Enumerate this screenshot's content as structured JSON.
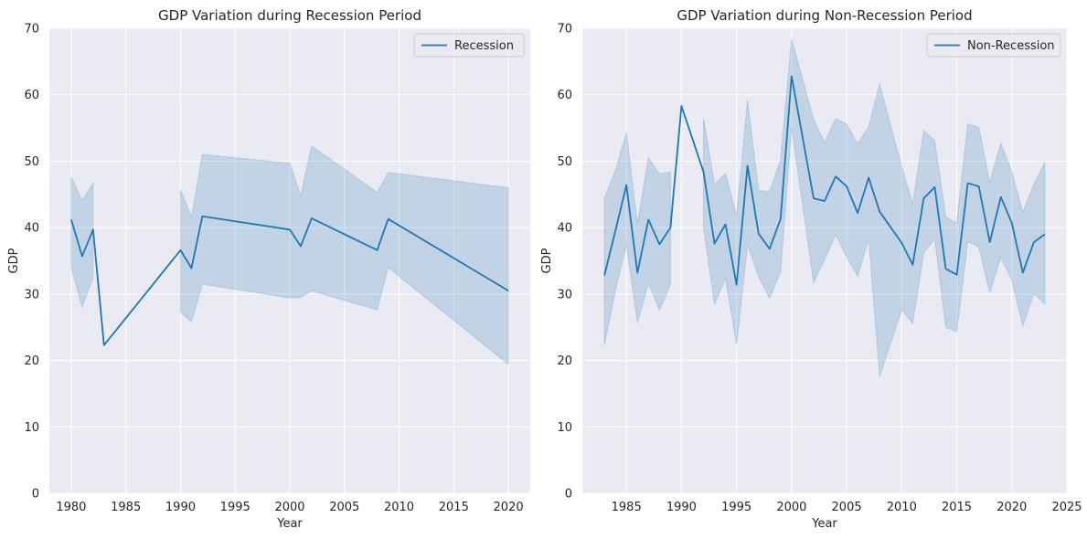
{
  "chart_data": [
    {
      "type": "line",
      "title": "GDP Variation during Recession Period",
      "xlabel": "Year",
      "ylabel": "GDP",
      "xlim": [
        1978,
        2022
      ],
      "ylim": [
        0,
        70
      ],
      "xticks": [
        1980,
        1985,
        1990,
        1995,
        2000,
        2005,
        2010,
        2015,
        2020
      ],
      "yticks": [
        0,
        10,
        20,
        30,
        40,
        50,
        60,
        70
      ],
      "grid": true,
      "legend_position": "top-right",
      "series": [
        {
          "name": "Recession",
          "color": "#1f77b4",
          "x": [
            1980,
            1981,
            1982,
            1983,
            1990,
            1991,
            1992,
            2000,
            2001,
            2002,
            2008,
            2009,
            2020
          ],
          "y": [
            41.2,
            35.7,
            39.7,
            22.3,
            36.6,
            33.9,
            41.7,
            39.7,
            37.2,
            41.4,
            36.6,
            41.3,
            30.5
          ],
          "ci_lower": [
            34.0,
            28.0,
            32.5,
            22.3,
            27.3,
            25.8,
            31.5,
            29.4,
            29.5,
            30.5,
            27.6,
            34.0,
            19.4
          ],
          "ci_upper": [
            47.6,
            44.1,
            46.7,
            22.3,
            45.7,
            41.6,
            51.0,
            49.7,
            44.8,
            52.3,
            45.3,
            48.3,
            46.0
          ],
          "ci_segments": [
            [
              0,
              2
            ],
            [
              4,
              12
            ]
          ]
        }
      ]
    },
    {
      "type": "line",
      "title": "GDP Variation during Non-Recession Period",
      "xlabel": "Year",
      "ylabel": "GDP",
      "xlim": [
        1981,
        2025
      ],
      "ylim": [
        0,
        70
      ],
      "xticks": [
        1985,
        1990,
        1995,
        2000,
        2005,
        2010,
        2015,
        2020,
        2025
      ],
      "yticks": [
        0,
        10,
        20,
        30,
        40,
        50,
        60,
        70
      ],
      "grid": true,
      "legend_position": "top-right",
      "series": [
        {
          "name": "Non-Recession",
          "color": "#1f77b4",
          "x": [
            1983,
            1984,
            1985,
            1986,
            1987,
            1988,
            1989,
            1990,
            1992,
            1993,
            1994,
            1995,
            1996,
            1997,
            1998,
            1999,
            2000,
            2002,
            2003,
            2004,
            2005,
            2006,
            2007,
            2008,
            2010,
            2011,
            2012,
            2013,
            2014,
            2015,
            2016,
            2017,
            2018,
            2019,
            2020,
            2021,
            2022,
            2023
          ],
          "y": [
            32.8,
            39.5,
            46.4,
            33.2,
            41.2,
            37.5,
            40.0,
            58.3,
            48.4,
            37.6,
            40.5,
            31.4,
            49.3,
            39.1,
            36.8,
            41.3,
            62.8,
            44.4,
            44.0,
            47.7,
            46.2,
            42.2,
            47.5,
            42.4,
            37.7,
            34.4,
            44.4,
            46.1,
            33.8,
            32.9,
            46.7,
            46.2,
            37.8,
            44.6,
            40.7,
            33.2,
            37.8,
            39.0
          ],
          "ci_lower": [
            22.3,
            30.5,
            37.4,
            25.7,
            31.6,
            27.6,
            31.4,
            58.3,
            40.0,
            28.5,
            32.3,
            22.4,
            37.4,
            32.6,
            29.4,
            33.3,
            55.0,
            31.7,
            35.2,
            38.9,
            35.6,
            32.7,
            38.3,
            17.6,
            27.6,
            25.6,
            36.2,
            38.3,
            25.0,
            24.3,
            37.9,
            37.1,
            30.2,
            35.5,
            32.1,
            25.2,
            30.1,
            28.5
          ],
          "ci_upper": [
            44.4,
            48.6,
            54.3,
            40.6,
            50.5,
            48.1,
            48.4,
            58.3,
            56.5,
            46.5,
            48.1,
            41.8,
            59.2,
            45.6,
            45.4,
            50.2,
            68.4,
            56.3,
            52.8,
            56.4,
            55.6,
            52.6,
            55.2,
            61.6,
            49.2,
            43.6,
            54.6,
            53.1,
            41.6,
            40.7,
            55.6,
            55.1,
            46.8,
            52.7,
            48.4,
            42.3,
            46.5,
            49.8
          ],
          "ci_segments": [
            [
              0,
              6
            ],
            [
              8,
              37
            ]
          ]
        }
      ]
    }
  ]
}
